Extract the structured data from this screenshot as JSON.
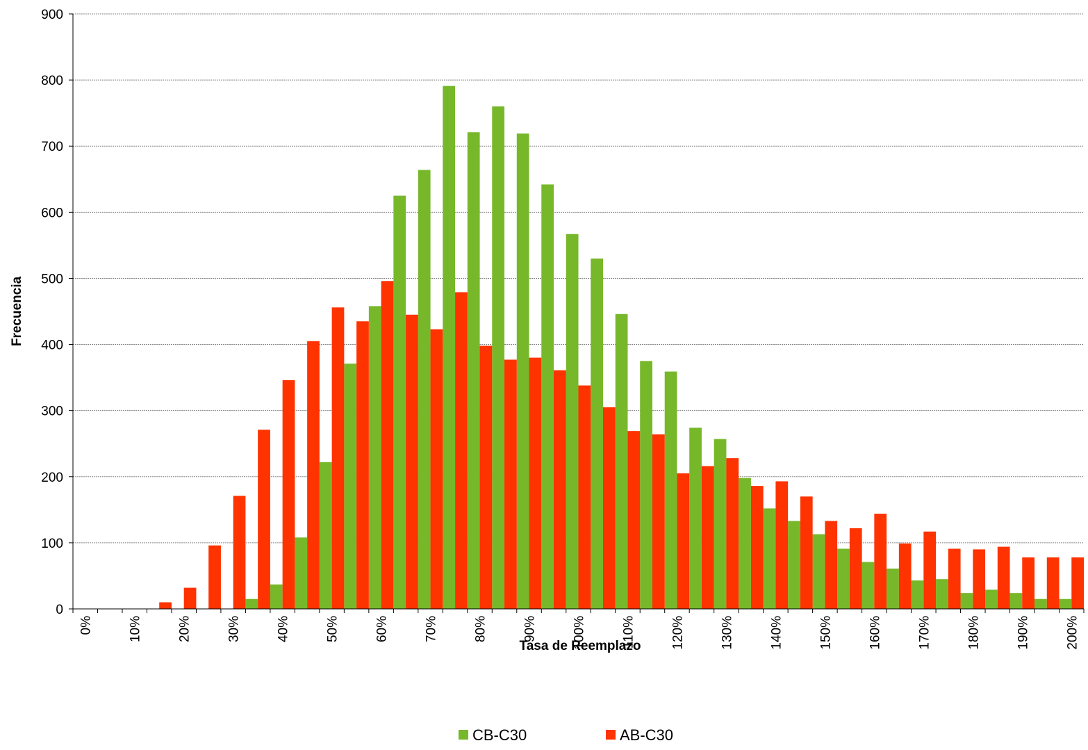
{
  "chart_data": {
    "type": "bar",
    "x_label": "Tasa de Reemplazo",
    "y_label": "Frecuencia",
    "categories": [
      "0%",
      null,
      "10%",
      null,
      "20%",
      null,
      "30%",
      null,
      "40%",
      null,
      "50%",
      null,
      "60%",
      null,
      "70%",
      null,
      "80%",
      null,
      "90%",
      null,
      "100%",
      null,
      "110%",
      null,
      "120%",
      null,
      "130%",
      null,
      "140%",
      null,
      "150%",
      null,
      "160%",
      null,
      "170%",
      null,
      "180%",
      null,
      "190%",
      null,
      "200%"
    ],
    "series": [
      {
        "name": "CB-C30",
        "color": "#77b82a",
        "values": [
          0,
          0,
          0,
          0,
          0,
          0,
          0,
          15,
          37,
          108,
          222,
          371,
          458,
          625,
          664,
          791,
          721,
          760,
          719,
          642,
          567,
          530,
          446,
          375,
          359,
          274,
          257,
          198,
          152,
          133,
          113,
          91,
          71,
          61,
          43,
          45,
          24,
          29,
          24,
          15,
          15
        ]
      },
      {
        "name": "AB-C30",
        "color": "#ff3300",
        "values": [
          0,
          0,
          0,
          10,
          32,
          96,
          171,
          271,
          346,
          405,
          456,
          435,
          496,
          445,
          423,
          479,
          398,
          377,
          380,
          361,
          338,
          305,
          269,
          264,
          205,
          216,
          228,
          186,
          193,
          170,
          133,
          122,
          144,
          99,
          117,
          91,
          90,
          94,
          78,
          78,
          78
        ]
      }
    ],
    "ylim": [
      0,
      900
    ],
    "yticks": [
      0,
      100,
      200,
      300,
      400,
      500,
      600,
      700,
      800,
      900
    ],
    "grid": true,
    "legend": "bottom"
  }
}
